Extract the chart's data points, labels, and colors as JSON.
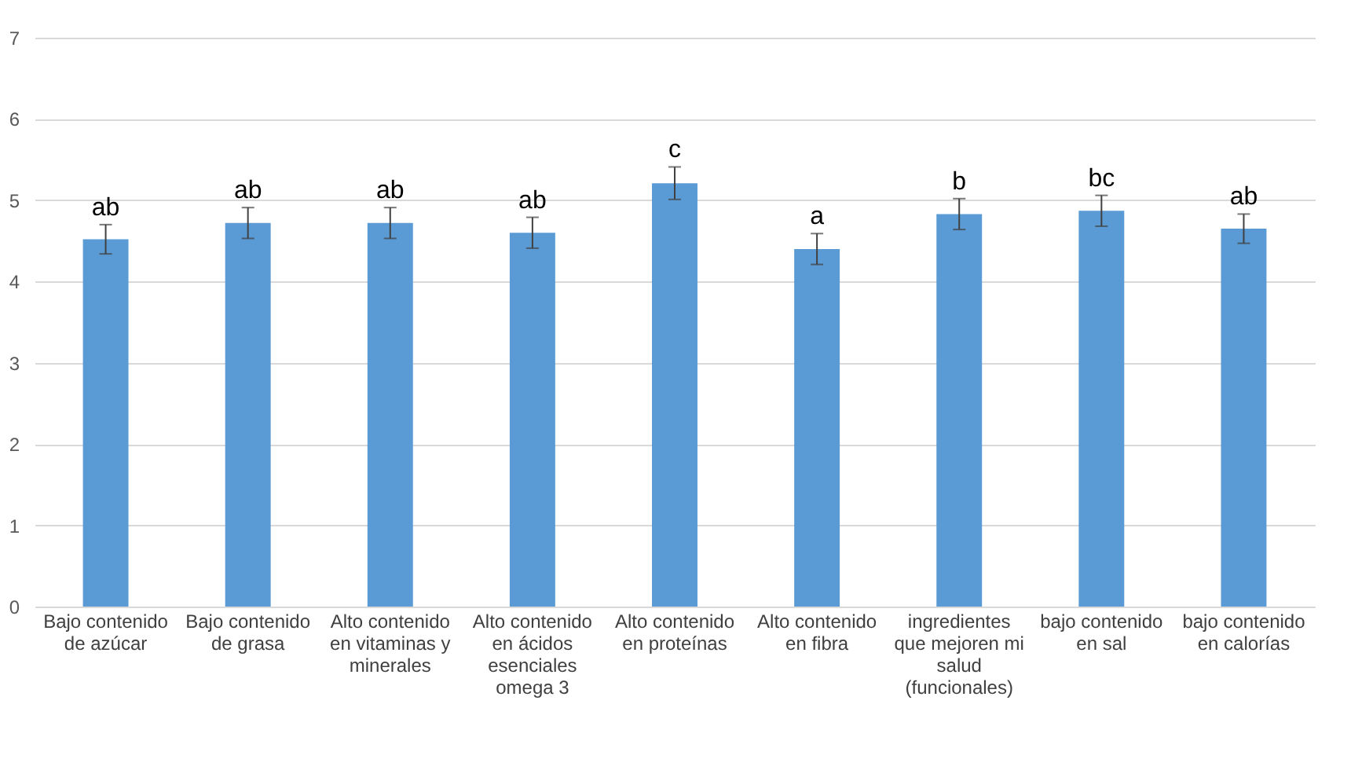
{
  "chart_data": {
    "type": "bar",
    "categories": [
      "Bajo contenido de azúcar",
      "Bajo contenido de grasa",
      "Alto contenido en vitaminas y minerales",
      "Alto contenido en ácidos esenciales omega 3",
      "Alto contenido en proteínas",
      "Alto contenido en fibra",
      "ingredientes que mejoren mi salud (funcionales)",
      "bajo contenido en sal",
      "bajo contenido en calorías"
    ],
    "values": [
      4.52,
      4.72,
      4.72,
      4.6,
      5.21,
      4.4,
      4.83,
      4.87,
      4.65
    ],
    "errors": [
      0.18,
      0.19,
      0.19,
      0.19,
      0.2,
      0.19,
      0.19,
      0.19,
      0.18
    ],
    "color": "#5b9bd5",
    "ylim": [
      0,
      7
    ],
    "yticks": [
      0,
      1,
      2,
      3,
      4,
      5,
      6,
      7
    ],
    "grid": "y",
    "annotations": [
      {
        "text": "ab",
        "x": "Bajo contenido de azúcar",
        "y": 4.7
      },
      {
        "text": "ab",
        "x": "Bajo contenido de grasa",
        "y": 4.91
      },
      {
        "text": "ab",
        "x": "Alto contenido en vitaminas y minerales",
        "y": 4.91
      },
      {
        "text": "ab",
        "x": "Alto contenido en ácidos esenciales omega 3",
        "y": 4.79
      },
      {
        "text": "c",
        "x": "Alto contenido en proteínas",
        "y": 5.41
      },
      {
        "text": "a",
        "x": "Alto contenido en fibra",
        "y": 4.59
      },
      {
        "text": "b",
        "x": "ingredientes que mejoren mi salud (funcionales)",
        "y": 5.02
      },
      {
        "text": "bc",
        "x": "bajo contenido en sal",
        "y": 5.06
      },
      {
        "text": "ab",
        "x": "bajo contenido en calorías",
        "y": 4.83
      }
    ]
  }
}
